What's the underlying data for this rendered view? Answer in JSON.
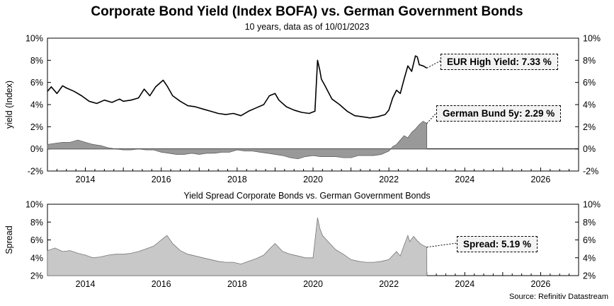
{
  "title": "Corporate Bond Yield (Index BOFA) vs. German Government Bonds",
  "subtitle": "10 years, data as of 10/01/2023",
  "source": "Source: Refinitiv Datastream",
  "colors": {
    "line": "#000000",
    "bund_fill": "#999999",
    "spread_fill": "#c8c8c8",
    "callout_bg": "#f3f3f3"
  },
  "chart_data": [
    {
      "type": "line",
      "title": "",
      "ylabel": "yield (Index)",
      "xlim": [
        2013.0,
        2027.0
      ],
      "ylim": [
        -2,
        10
      ],
      "x_ticks": [
        2014,
        2016,
        2018,
        2020,
        2022,
        2024,
        2026
      ],
      "x_tick_labels": [
        "2014",
        "2016",
        "2018",
        "2020",
        "2022",
        "2024",
        "2026"
      ],
      "y_ticks": [
        -2,
        0,
        2,
        4,
        6,
        8,
        10
      ],
      "y_tick_labels": [
        "-2%",
        "0%",
        "2%",
        "4%",
        "6%",
        "8%",
        "10%"
      ],
      "series": [
        {
          "name": "EUR High Yield",
          "style": "line",
          "callout": "EUR High Yield: 7.33 %",
          "x": [
            2013.0,
            2013.1,
            2013.25,
            2013.4,
            2013.5,
            2013.7,
            2013.9,
            2014.1,
            2014.3,
            2014.5,
            2014.7,
            2014.9,
            2015.0,
            2015.2,
            2015.4,
            2015.55,
            2015.7,
            2015.85,
            2016.05,
            2016.15,
            2016.3,
            2016.5,
            2016.7,
            2016.9,
            2017.1,
            2017.3,
            2017.5,
            2017.7,
            2017.9,
            2018.1,
            2018.3,
            2018.5,
            2018.7,
            2018.85,
            2019.0,
            2019.1,
            2019.3,
            2019.5,
            2019.7,
            2019.9,
            2020.05,
            2020.12,
            2020.18,
            2020.22,
            2020.3,
            2020.5,
            2020.7,
            2020.9,
            2021.1,
            2021.3,
            2021.5,
            2021.7,
            2021.9,
            2022.0,
            2022.1,
            2022.2,
            2022.3,
            2022.4,
            2022.5,
            2022.6,
            2022.7,
            2022.75,
            2022.8,
            2022.9,
            2023.0
          ],
          "values": [
            5.2,
            5.6,
            5.0,
            5.7,
            5.5,
            5.2,
            4.8,
            4.3,
            4.1,
            4.4,
            4.2,
            4.5,
            4.3,
            4.4,
            4.6,
            5.4,
            4.8,
            5.6,
            6.2,
            5.7,
            4.8,
            4.3,
            3.9,
            3.8,
            3.6,
            3.4,
            3.2,
            3.1,
            3.2,
            3.0,
            3.4,
            3.7,
            4.0,
            4.8,
            5.0,
            4.4,
            3.8,
            3.5,
            3.3,
            3.2,
            3.4,
            8.0,
            7.1,
            6.3,
            5.8,
            4.5,
            4.0,
            3.4,
            3.0,
            2.9,
            2.8,
            2.9,
            3.1,
            3.5,
            4.6,
            5.3,
            5.0,
            6.3,
            7.5,
            7.0,
            8.4,
            8.3,
            7.6,
            7.5,
            7.3
          ]
        },
        {
          "name": "German Bund 5y",
          "style": "area",
          "callout": "German Bund 5y: 2.29 %",
          "x": [
            2013.0,
            2013.2,
            2013.4,
            2013.6,
            2013.8,
            2014.0,
            2014.2,
            2014.4,
            2014.6,
            2014.8,
            2015.0,
            2015.2,
            2015.4,
            2015.6,
            2015.8,
            2016.0,
            2016.2,
            2016.4,
            2016.6,
            2016.8,
            2017.0,
            2017.2,
            2017.4,
            2017.6,
            2017.8,
            2018.0,
            2018.2,
            2018.4,
            2018.6,
            2018.8,
            2019.0,
            2019.2,
            2019.4,
            2019.6,
            2019.8,
            2020.0,
            2020.2,
            2020.4,
            2020.6,
            2020.8,
            2021.0,
            2021.2,
            2021.4,
            2021.6,
            2021.8,
            2022.0,
            2022.1,
            2022.2,
            2022.3,
            2022.4,
            2022.5,
            2022.6,
            2022.7,
            2022.8,
            2022.9,
            2023.0
          ],
          "values": [
            0.4,
            0.5,
            0.6,
            0.6,
            0.8,
            0.6,
            0.4,
            0.3,
            0.1,
            0.0,
            -0.1,
            -0.1,
            0.0,
            -0.1,
            -0.1,
            -0.3,
            -0.4,
            -0.5,
            -0.5,
            -0.4,
            -0.5,
            -0.4,
            -0.4,
            -0.3,
            -0.3,
            -0.1,
            -0.2,
            -0.2,
            -0.3,
            -0.4,
            -0.5,
            -0.6,
            -0.8,
            -0.9,
            -0.7,
            -0.6,
            -0.7,
            -0.7,
            -0.7,
            -0.8,
            -0.8,
            -0.6,
            -0.6,
            -0.6,
            -0.5,
            -0.2,
            0.2,
            0.4,
            0.8,
            1.2,
            1.0,
            1.5,
            1.8,
            2.2,
            2.5,
            2.3
          ]
        }
      ]
    },
    {
      "type": "area",
      "title": "Yield Spread Corporate Bonds vs. German Government Bonds",
      "ylabel": "Spread",
      "xlim": [
        2013.0,
        2027.0
      ],
      "ylim": [
        2,
        10
      ],
      "x_ticks": [
        2014,
        2016,
        2018,
        2020,
        2022,
        2024,
        2026
      ],
      "x_tick_labels": [
        "2014",
        "2016",
        "2018",
        "2020",
        "2022",
        "2024",
        "2026"
      ],
      "y_ticks": [
        2,
        4,
        6,
        8,
        10
      ],
      "y_tick_labels": [
        "2%",
        "4%",
        "6%",
        "8%",
        "10%"
      ],
      "series": [
        {
          "name": "Spread",
          "callout": "Spread: 5.19 %",
          "x": [
            2013.0,
            2013.2,
            2013.4,
            2013.6,
            2013.8,
            2014.0,
            2014.2,
            2014.4,
            2014.6,
            2014.8,
            2015.0,
            2015.2,
            2015.4,
            2015.6,
            2015.8,
            2016.0,
            2016.15,
            2016.3,
            2016.5,
            2016.7,
            2016.9,
            2017.1,
            2017.3,
            2017.5,
            2017.7,
            2017.9,
            2018.1,
            2018.3,
            2018.5,
            2018.7,
            2018.9,
            2019.0,
            2019.2,
            2019.4,
            2019.6,
            2019.8,
            2020.0,
            2020.12,
            2020.18,
            2020.25,
            2020.4,
            2020.6,
            2020.8,
            2021.0,
            2021.2,
            2021.4,
            2021.6,
            2021.8,
            2022.0,
            2022.2,
            2022.3,
            2022.4,
            2022.5,
            2022.55,
            2022.65,
            2022.75,
            2022.85,
            2023.0
          ],
          "values": [
            4.8,
            5.1,
            4.7,
            4.8,
            4.5,
            4.3,
            4.0,
            4.1,
            4.3,
            4.4,
            4.4,
            4.5,
            4.7,
            5.0,
            5.3,
            6.0,
            6.5,
            5.6,
            4.8,
            4.4,
            4.2,
            4.0,
            3.8,
            3.6,
            3.5,
            3.5,
            3.3,
            3.6,
            3.9,
            4.3,
            5.2,
            5.6,
            4.7,
            4.4,
            4.2,
            4.0,
            4.0,
            8.5,
            7.3,
            6.5,
            5.8,
            4.9,
            4.4,
            3.8,
            3.6,
            3.5,
            3.5,
            3.6,
            3.8,
            4.7,
            4.2,
            5.4,
            6.5,
            5.8,
            6.4,
            5.9,
            5.5,
            5.19
          ]
        }
      ]
    }
  ]
}
